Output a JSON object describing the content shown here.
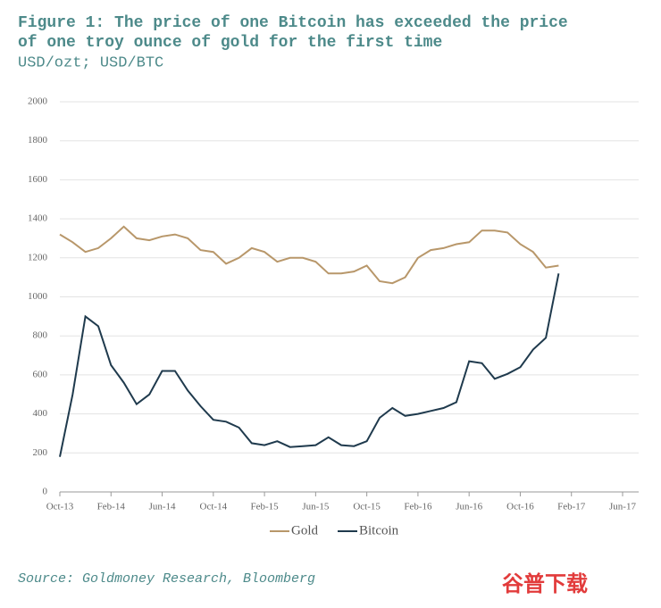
{
  "chart_data": {
    "type": "line",
    "title": "Figure 1: The price of one Bitcoin has exceeded the price",
    "title_line2": "of one troy ounce of gold for the first time",
    "subtitle": "USD/ozt; USD/BTC",
    "categories": [
      "Oct-13",
      null,
      null,
      null,
      "Feb-14",
      null,
      null,
      null,
      "Jun-14",
      null,
      null,
      null,
      "Oct-14",
      null,
      null,
      null,
      "Feb-15",
      null,
      null,
      null,
      "Jun-15",
      null,
      null,
      null,
      "Oct-15",
      null,
      null,
      null,
      "Feb-16",
      null,
      null,
      null,
      "Jun-16",
      null,
      null,
      null,
      "Oct-16",
      null,
      null,
      null,
      "Feb-17",
      null,
      null,
      null,
      "Jun-17"
    ],
    "series": [
      {
        "name": "Gold",
        "color": "#b8976a",
        "values": [
          1320,
          1280,
          1230,
          1250,
          1300,
          1360,
          1300,
          1290,
          1310,
          1320,
          1300,
          1240,
          1230,
          1170,
          1200,
          1250,
          1230,
          1180,
          1200,
          1200,
          1180,
          1120,
          1120,
          1130,
          1160,
          1080,
          1070,
          1100,
          1200,
          1240,
          1250,
          1270,
          1280,
          1340,
          1340,
          1330,
          1270,
          1230,
          1150,
          1160,
          null,
          null,
          null,
          null,
          null
        ]
      },
      {
        "name": "Bitcoin",
        "color": "#1f3a4d",
        "values": [
          180,
          500,
          900,
          850,
          650,
          560,
          450,
          500,
          620,
          620,
          520,
          440,
          370,
          360,
          330,
          250,
          240,
          260,
          230,
          235,
          240,
          280,
          240,
          235,
          260,
          380,
          430,
          390,
          400,
          415,
          430,
          460,
          670,
          660,
          580,
          605,
          640,
          730,
          790,
          1120,
          null,
          null,
          null,
          null,
          null
        ]
      }
    ],
    "ylim": [
      0,
      2000
    ],
    "yticks": [
      0,
      200,
      400,
      600,
      800,
      1000,
      1200,
      1400,
      1600,
      1800,
      2000
    ],
    "grid": true,
    "legend": "bottom",
    "source": "Source: Goldmoney Research, Bloomberg",
    "watermark": "谷普下载"
  }
}
